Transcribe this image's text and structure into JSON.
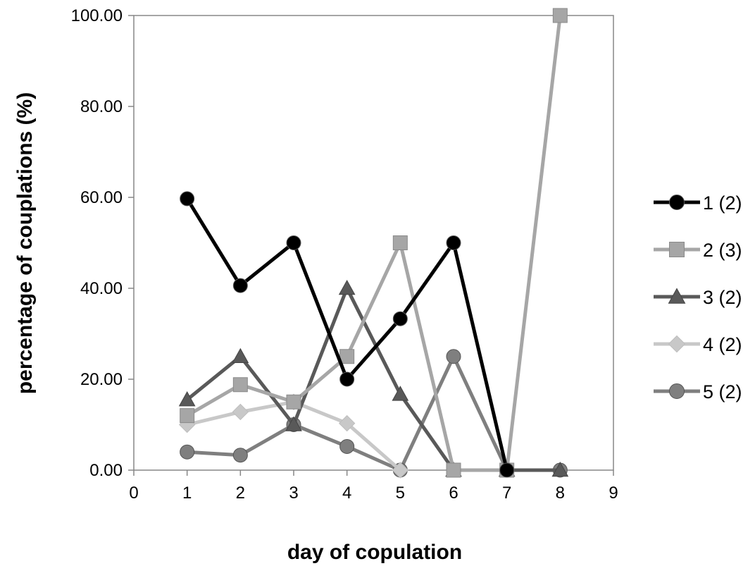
{
  "chart_data": {
    "type": "line",
    "title": "",
    "xlabel": "day of copulation",
    "ylabel": "percentage of couplations (%)",
    "xlim": [
      0,
      9
    ],
    "ylim": [
      0,
      100
    ],
    "x_ticks": [
      "0",
      "1",
      "2",
      "3",
      "4",
      "5",
      "6",
      "7",
      "8",
      "9"
    ],
    "y_ticks": [
      "0.00",
      "20.00",
      "40.00",
      "60.00",
      "80.00",
      "100.00"
    ],
    "grid": false,
    "legend_position": "right",
    "series": [
      {
        "name": "1 (2)",
        "marker": "circle",
        "color": "#000000",
        "points": [
          [
            1,
            59.7
          ],
          [
            2,
            40.6
          ],
          [
            3,
            50.0
          ],
          [
            4,
            20.0
          ],
          [
            5,
            33.3
          ],
          [
            6,
            50.0
          ],
          [
            7,
            0.0
          ]
        ]
      },
      {
        "name": "2 (3)",
        "marker": "square",
        "color": "#a6a6a6",
        "points": [
          [
            1,
            12.0
          ],
          [
            2,
            18.8
          ],
          [
            3,
            15.0
          ],
          [
            4,
            25.0
          ],
          [
            5,
            50.0
          ],
          [
            6,
            0.0
          ],
          [
            7,
            0.0
          ],
          [
            8,
            100.0
          ]
        ]
      },
      {
        "name": "3 (2)",
        "marker": "triangle",
        "color": "#595959",
        "points": [
          [
            1,
            15.5
          ],
          [
            2,
            25.0
          ],
          [
            3,
            10.0
          ],
          [
            4,
            40.0
          ],
          [
            5,
            16.7
          ],
          [
            6,
            0.0
          ],
          [
            7,
            0.0
          ],
          [
            8,
            0.0
          ]
        ]
      },
      {
        "name": "4 (2)",
        "marker": "diamond",
        "color": "#c8c8c8",
        "points": [
          [
            1,
            10.0
          ],
          [
            2,
            12.8
          ],
          [
            3,
            15.0
          ],
          [
            4,
            10.3
          ],
          [
            5,
            0.0
          ]
        ]
      },
      {
        "name": "5 (2)",
        "marker": "circle",
        "color": "#7f7f7f",
        "points": [
          [
            1,
            4.0
          ],
          [
            2,
            3.3
          ],
          [
            3,
            10.0
          ],
          [
            4,
            5.2
          ],
          [
            5,
            0.0
          ],
          [
            6,
            25.0
          ],
          [
            7,
            0.0
          ],
          [
            8,
            0.0
          ]
        ]
      }
    ]
  }
}
